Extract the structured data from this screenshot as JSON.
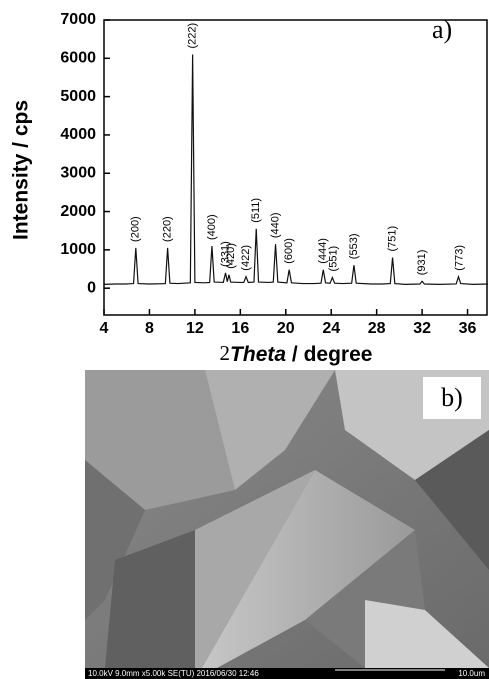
{
  "chart_data": {
    "type": "line",
    "title": "a)",
    "ylabel": "Intensity / cps",
    "xlabel_parts": [
      "2",
      "Theta",
      " / degree"
    ],
    "color": "#111111",
    "x": [
      4,
      5,
      6,
      6.6,
      6.8,
      7.0,
      8,
      9,
      9.4,
      9.6,
      9.8,
      10.5,
      11.6,
      11.8,
      12.0,
      12.8,
      13.3,
      13.5,
      13.7,
      14.5,
      14.7,
      14.85,
      15.0,
      15.15,
      16.0,
      16.3,
      16.5,
      16.7,
      17.2,
      17.4,
      17.6,
      18.5,
      18.9,
      19.1,
      19.3,
      20.1,
      20.3,
      20.5,
      21.5,
      22.5,
      23.1,
      23.3,
      23.5,
      23.9,
      24.1,
      24.3,
      25.0,
      25.8,
      26.0,
      26.2,
      27.5,
      28.5,
      29.2,
      29.4,
      29.6,
      30.5,
      31.8,
      32.0,
      32.2,
      33.5,
      35.0,
      35.2,
      35.4,
      36.5,
      37.8
    ],
    "values": [
      100,
      110,
      110,
      120,
      1050,
      120,
      110,
      115,
      120,
      1050,
      130,
      120,
      140,
      6100,
      150,
      140,
      150,
      1100,
      160,
      150,
      400,
      170,
      350,
      160,
      150,
      150,
      300,
      150,
      160,
      1550,
      160,
      150,
      160,
      1150,
      160,
      140,
      480,
      140,
      120,
      120,
      130,
      480,
      140,
      130,
      280,
      130,
      120,
      130,
      600,
      130,
      110,
      110,
      120,
      800,
      120,
      100,
      110,
      180,
      110,
      100,
      110,
      300,
      120,
      100,
      110
    ],
    "xlim": [
      4,
      37.8
    ],
    "ylim": [
      -700,
      7000
    ],
    "xticks": [
      4,
      8,
      12,
      16,
      20,
      24,
      28,
      32,
      36
    ],
    "yticks": [
      0,
      1000,
      2000,
      3000,
      4000,
      5000,
      6000,
      7000
    ],
    "peak_labels": [
      {
        "text": "(200)",
        "x": 6.8
      },
      {
        "text": "(220)",
        "x": 9.6
      },
      {
        "text": "(222)",
        "x": 11.8
      },
      {
        "text": "(400)",
        "x": 13.5
      },
      {
        "text": "(331)",
        "x": 14.7
      },
      {
        "text": "(420)",
        "x": 15.2
      },
      {
        "text": "(422)",
        "x": 16.5
      },
      {
        "text": "(511)",
        "x": 17.4
      },
      {
        "text": "(440)",
        "x": 19.1
      },
      {
        "text": "(600)",
        "x": 20.3
      },
      {
        "text": "(444)",
        "x": 23.3
      },
      {
        "text": "(551)",
        "x": 24.2
      },
      {
        "text": "(553)",
        "x": 26.0
      },
      {
        "text": "(751)",
        "x": 29.4
      },
      {
        "text": "(931)",
        "x": 32.0
      },
      {
        "text": "(773)",
        "x": 35.3
      }
    ]
  },
  "image_panel": {
    "label": "b)",
    "info": "10.0kV 9.0mm x5.00k SE(TU) 2016/06/30 12:46",
    "scale": "10.0um"
  }
}
